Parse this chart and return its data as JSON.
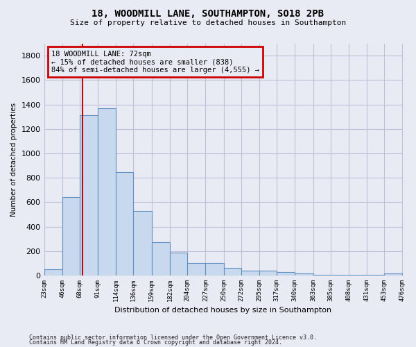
{
  "title": "18, WOODMILL LANE, SOUTHAMPTON, SO18 2PB",
  "subtitle": "Size of property relative to detached houses in Southampton",
  "xlabel": "Distribution of detached houses by size in Southampton",
  "ylabel": "Number of detached properties",
  "bar_color": "#c8d8ee",
  "bar_edge_color": "#6090c0",
  "grid_color": "#c0c0d8",
  "background_color": "#e8eaf4",
  "vline_x": 72,
  "vline_color": "#cc0000",
  "annotation_text_line1": "18 WOODMILL LANE: 72sqm",
  "annotation_text_line2": "← 15% of detached houses are smaller (838)",
  "annotation_text_line3": "84% of semi-detached houses are larger (4,555) →",
  "annotation_box_color": "#cc0000",
  "bin_edges": [
    23,
    46,
    68,
    91,
    114,
    136,
    159,
    182,
    204,
    227,
    250,
    272,
    295,
    317,
    340,
    363,
    385,
    408,
    431,
    453,
    476
  ],
  "counts": [
    50,
    640,
    1310,
    1370,
    848,
    530,
    275,
    185,
    103,
    103,
    62,
    38,
    38,
    28,
    15,
    5,
    5,
    5,
    5,
    15
  ],
  "ylim": [
    0,
    1900
  ],
  "yticks": [
    0,
    200,
    400,
    600,
    800,
    1000,
    1200,
    1400,
    1600,
    1800
  ],
  "footnote_line1": "Contains HM Land Registry data © Crown copyright and database right 2024.",
  "footnote_line2": "Contains public sector information licensed under the Open Government Licence v3.0."
}
